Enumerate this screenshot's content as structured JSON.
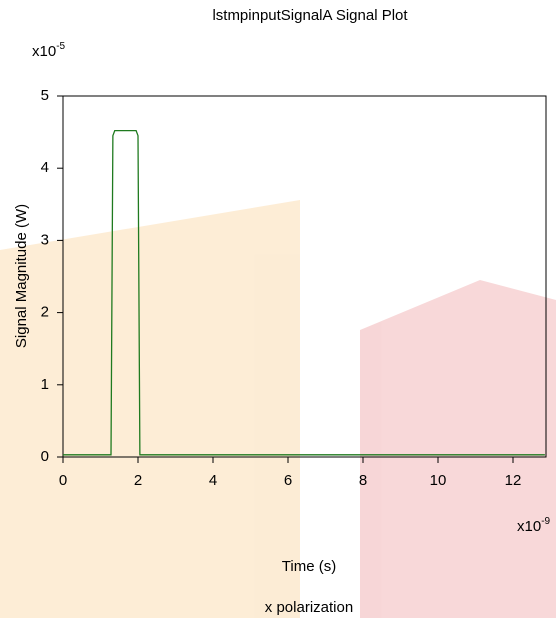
{
  "chart_data": {
    "type": "line",
    "title": "lstmpinputSignalA Signal Plot",
    "x_label": "Time (s)",
    "y_label": "Signal Magnitude (W)",
    "x_multiplier": {
      "base": "x10",
      "exponent": "-9"
    },
    "y_multiplier": {
      "base": "x10",
      "exponent": "-5"
    },
    "x": [
      0,
      1.28,
      1.33,
      1.38,
      1.95,
      2.0,
      2.05,
      12.85
    ],
    "series": [
      {
        "name": "x polarization",
        "color": "#1f7a1f",
        "values": [
          0.03,
          0.03,
          4.45,
          4.52,
          4.52,
          4.45,
          0.03,
          0.03
        ]
      }
    ],
    "xlim": [
      0,
      12.88
    ],
    "ylim": [
      0,
      5
    ],
    "xticks": [
      0,
      2,
      4,
      6,
      8,
      10,
      12
    ],
    "yticks": [
      0,
      1,
      2,
      3,
      4,
      5
    ],
    "legend": "bottom"
  }
}
